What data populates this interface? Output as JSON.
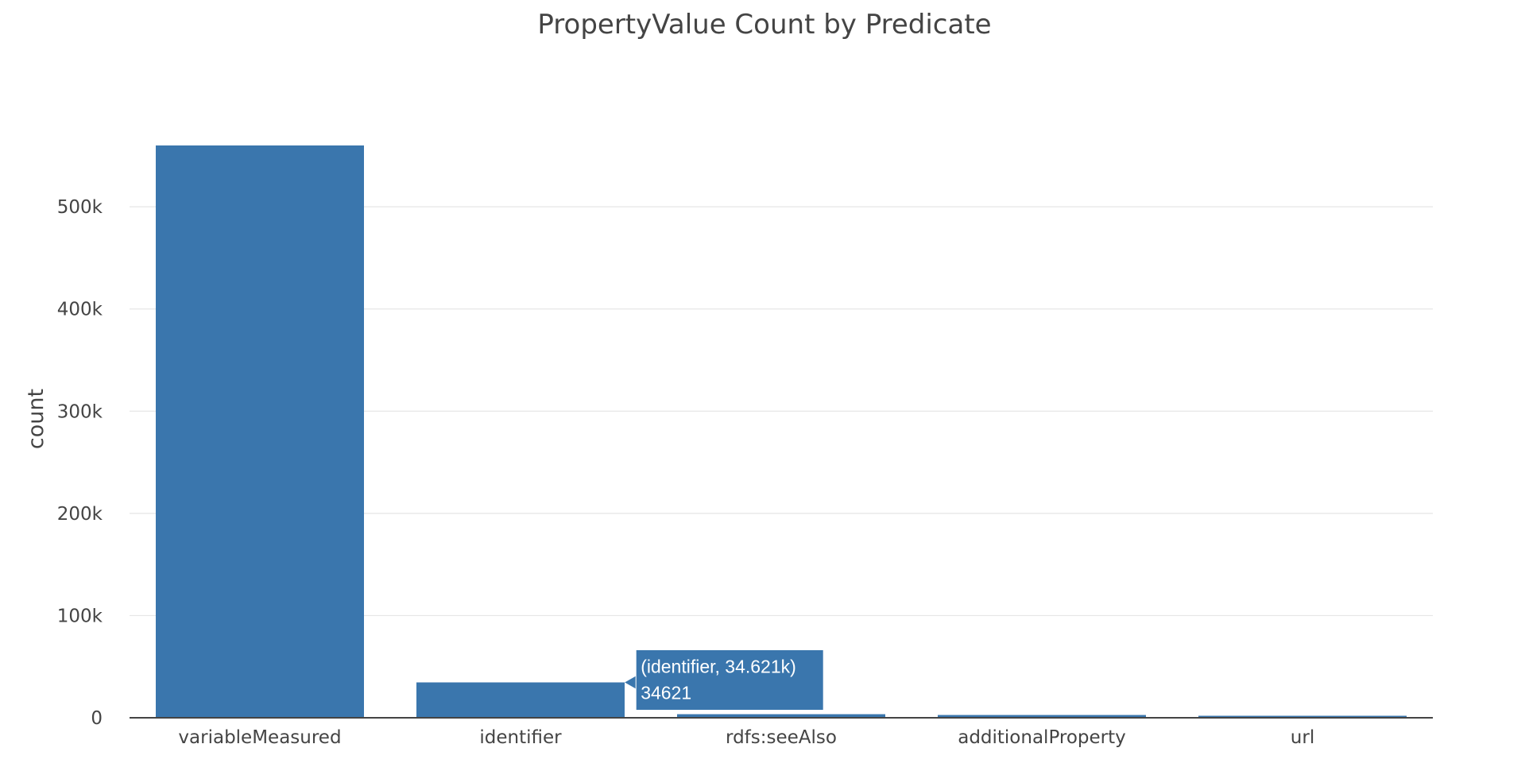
{
  "chart_data": {
    "type": "bar",
    "title": "PropertyValue Count by Predicate",
    "xlabel": "",
    "ylabel": "count",
    "categories": [
      "variableMeasured",
      "identifier",
      "rdfs:seeAlso",
      "additionalProperty",
      "url"
    ],
    "values": [
      560000,
      34621,
      3400,
      2900,
      1800
    ],
    "ylim": [
      0,
      560000
    ],
    "yticks": [
      0,
      100000,
      200000,
      300000,
      400000,
      500000
    ],
    "ytick_labels": [
      "0",
      "100k",
      "200k",
      "300k",
      "400k",
      "500k"
    ],
    "grid": true,
    "legend": "none",
    "bar_color": "#3a76ad",
    "hover": {
      "category": "identifier",
      "line1": "(identifier, 34.621k)",
      "line2": "34621"
    }
  }
}
